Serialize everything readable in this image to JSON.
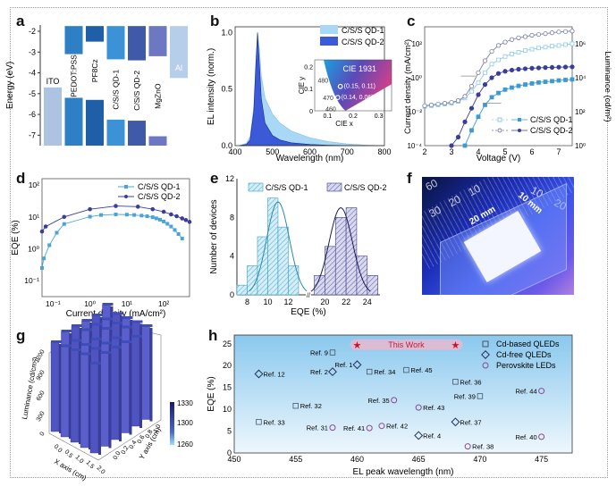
{
  "panel_labels": [
    "a",
    "b",
    "c",
    "d",
    "e",
    "f",
    "g",
    "h"
  ],
  "colors": {
    "qd1": "#5fb0e0",
    "qd2": "#3a3d9a",
    "qd1_fill": "#a8d8f5",
    "qd2_fill": "#3c5ad8",
    "axis": "#333333",
    "star": "#d0102a",
    "perovskite": "#8a4a8a"
  },
  "chart_data": [
    {
      "id": "a",
      "type": "bar",
      "title": "",
      "ylabel": "Energy (eV)",
      "ylim": [
        -7.5,
        -1.7
      ],
      "yticks": [
        -2,
        -3,
        -4,
        -5,
        -6,
        -7
      ],
      "categories": [
        "ITO",
        "PEDOT:PSS",
        "PF8Cz",
        "C/S/S QD-1",
        "C/S/S QD-2",
        "MgZnO",
        "Al"
      ],
      "display_labels": [
        "ITO",
        "PEDOT:PSS",
        "PF8Cz",
        "C/S/S QD-1",
        "C/S/S QD-2",
        "MgZnO",
        "Al"
      ],
      "bars": [
        {
          "name": "ITO",
          "top": -4.7,
          "bottom": -7.5,
          "color": "#9db8dc"
        },
        {
          "name": "PEDOT:PSS",
          "lumo": -1.75,
          "lumo_bottom": -3.1,
          "homo_top": -5.2,
          "homo_bottom": -7.5,
          "color": "#2f7fc4"
        },
        {
          "name": "PF8Cz",
          "lumo": -1.75,
          "lumo_bottom": -2.5,
          "homo_top": -5.3,
          "homo_bottom": -7.5,
          "color": "#1e5fa8"
        },
        {
          "name": "C/S/S QD-1",
          "lumo": -1.75,
          "lumo_bottom": -3.35,
          "homo_top": -6.25,
          "homo_bottom": -7.5,
          "color": "#3b92d6"
        },
        {
          "name": "C/S/S QD-2",
          "lumo": -1.75,
          "lumo_bottom": -3.4,
          "homo_top": -6.3,
          "homo_bottom": -7.5,
          "color": "#3f5aa8"
        },
        {
          "name": "MgZnO",
          "lumo": -1.75,
          "lumo_bottom": -3.2,
          "homo_top": -7.05,
          "homo_bottom": -7.5,
          "color": "#6d77c2"
        },
        {
          "name": "Al",
          "top": -1.75,
          "bottom": -4.25,
          "color": "#a9c6e6"
        }
      ]
    },
    {
      "id": "b",
      "type": "area",
      "title": "",
      "xlabel": "Wavelength (nm)",
      "ylabel": "EL intensity (norm.)",
      "xlim": [
        400,
        800
      ],
      "ylim": [
        0,
        1.05
      ],
      "xticks": [
        400,
        500,
        600,
        700,
        800
      ],
      "yticks": [
        0.0,
        0.5,
        1.0
      ],
      "ytick_labels": [
        "0.0",
        "0.5",
        "1.0"
      ],
      "legend": "top-right",
      "series": [
        {
          "name": "C/S/S QD-1",
          "peak": 460,
          "x": [
            410,
            430,
            440,
            450,
            455,
            460,
            465,
            470,
            480,
            500,
            520,
            550,
            600,
            650,
            700,
            750,
            800
          ],
          "values": [
            0,
            0.02,
            0.08,
            0.35,
            0.7,
            1.0,
            0.85,
            0.62,
            0.42,
            0.28,
            0.2,
            0.13,
            0.07,
            0.035,
            0.015,
            0.005,
            0
          ]
        },
        {
          "name": "C/S/S QD-2",
          "peak": 460,
          "x": [
            410,
            430,
            440,
            450,
            455,
            460,
            465,
            470,
            480,
            500,
            520,
            550,
            600,
            650,
            700,
            750,
            800
          ],
          "values": [
            0,
            0.01,
            0.05,
            0.3,
            0.68,
            1.0,
            0.72,
            0.42,
            0.2,
            0.09,
            0.05,
            0.025,
            0.01,
            0.004,
            0.001,
            0,
            0
          ]
        }
      ],
      "inset": {
        "title": "CIE 1931",
        "xlabel": "CIE x",
        "ylabel": "CIE y",
        "xticks": [
          0.1,
          0.2,
          0.3
        ],
        "yticks": [
          0,
          0.1,
          0.2
        ],
        "wavelength_marks": [
          "480",
          "470",
          "460"
        ],
        "points": [
          {
            "label": "(0.15, 0.11)",
            "x": 0.15,
            "y": 0.11
          },
          {
            "label": "(0.14, 0.06)",
            "x": 0.14,
            "y": 0.06
          }
        ]
      }
    },
    {
      "id": "c",
      "type": "line",
      "title": "",
      "xlabel": "Voltage (V)",
      "ylabel": "Current density (mA/cm²)",
      "ylabel2": "Luminance (cd/m²)",
      "xlim": [
        2,
        7.5
      ],
      "xticks": [
        2,
        3,
        4,
        5,
        6,
        7
      ],
      "ylim_log": [
        -4,
        3
      ],
      "yticks_labels": [
        "10⁻⁴",
        "10⁻²",
        "10⁰",
        "10²"
      ],
      "y2lim_log": [
        0,
        7
      ],
      "y2ticks_labels": [
        "10⁰",
        "10²",
        "10⁴",
        "10⁶"
      ],
      "legend": "bottom-right",
      "series": [
        {
          "name": "C/S/S QD-1",
          "kind": "current",
          "marker": "open-square",
          "x": [
            2.0,
            2.25,
            2.5,
            2.75,
            3.0,
            3.25,
            3.5,
            3.75,
            4.0,
            4.25,
            4.5,
            4.75,
            5.0,
            5.25,
            5.5,
            5.75,
            6.0,
            6.25,
            6.5,
            6.75,
            7.0,
            7.25,
            7.5
          ],
          "log10_values": [
            -1.7,
            -1.65,
            -1.6,
            -1.55,
            -1.5,
            -1.4,
            -1.2,
            -0.8,
            -0.3,
            0.3,
            0.8,
            1.05,
            1.25,
            1.4,
            1.5,
            1.6,
            1.68,
            1.75,
            1.8,
            1.86,
            1.9,
            1.95,
            2.0
          ]
        },
        {
          "name": "C/S/S QD-2",
          "kind": "current",
          "marker": "open-circle",
          "x": [
            2.0,
            2.25,
            2.5,
            2.75,
            3.0,
            3.25,
            3.5,
            3.75,
            4.0,
            4.25,
            4.5,
            4.75,
            5.0,
            5.25,
            5.5,
            5.75,
            6.0,
            6.25,
            6.5,
            6.75,
            7.0,
            7.25,
            7.5
          ],
          "log10_values": [
            -1.65,
            -1.6,
            -1.55,
            -1.5,
            -1.45,
            -1.35,
            -1.1,
            -0.5,
            0.3,
            1.0,
            1.55,
            1.9,
            2.1,
            2.25,
            2.35,
            2.42,
            2.5,
            2.55,
            2.6,
            2.65,
            2.7,
            2.72,
            2.75
          ]
        },
        {
          "name": "C/S/S QD-1",
          "kind": "luminance",
          "marker": "filled-square",
          "x": [
            3.5,
            3.75,
            4.0,
            4.25,
            4.5,
            4.75,
            5.0,
            5.25,
            5.5,
            5.75,
            6.0,
            6.25,
            6.5,
            6.75,
            7.0,
            7.25,
            7.5
          ],
          "log10_values": [
            0.0,
            0.9,
            1.7,
            2.4,
            2.85,
            3.1,
            3.3,
            3.42,
            3.52,
            3.6,
            3.66,
            3.72,
            3.76,
            3.8,
            3.84,
            3.87,
            3.9
          ]
        },
        {
          "name": "C/S/S QD-2",
          "kind": "luminance",
          "marker": "filled-circle",
          "x": [
            3.0,
            3.25,
            3.5,
            3.75,
            4.0,
            4.25,
            4.5,
            4.75,
            5.0,
            5.25,
            5.5,
            5.75,
            6.0,
            6.25,
            6.5,
            6.75,
            7.0,
            7.25,
            7.5
          ],
          "log10_values": [
            0.0,
            0.5,
            1.4,
            2.2,
            3.0,
            3.6,
            4.0,
            4.25,
            4.38,
            4.45,
            4.5,
            4.53,
            4.56,
            4.58,
            4.6,
            4.61,
            4.62,
            4.63,
            4.64
          ]
        }
      ]
    },
    {
      "id": "d",
      "type": "line",
      "title": "",
      "xlabel": "Current density (mA/cm²)",
      "ylabel": "EQE (%)",
      "xlim_log": [
        -1.3,
        2.7
      ],
      "xticks_labels": [
        "10⁻¹",
        "10⁰",
        "10¹",
        "10²"
      ],
      "ylim_log": [
        -1.5,
        2.2
      ],
      "yticks_labels": [
        "10⁻¹",
        "10⁰",
        "10¹",
        "10²"
      ],
      "legend": "top-right",
      "series": [
        {
          "name": "C/S/S QD-1",
          "log10_x": [
            -1.3,
            -1.25,
            -1.1,
            -0.9,
            -0.7,
            0.0,
            0.3,
            0.7,
            1.0,
            1.2,
            1.4,
            1.55,
            1.7,
            1.8,
            1.9,
            2.0,
            2.1,
            2.2,
            2.3,
            2.4,
            2.5
          ],
          "eqe": [
            0.25,
            0.5,
            1.3,
            3.2,
            6.0,
            10.2,
            11.5,
            12.0,
            11.8,
            11.5,
            11.0,
            10.5,
            9.8,
            9.0,
            8.2,
            7.2,
            6.1,
            5.0,
            3.9,
            2.9,
            2.1
          ]
        },
        {
          "name": "C/S/S QD-2",
          "log10_x": [
            -1.3,
            -1.2,
            -0.7,
            0.0,
            0.7,
            1.3,
            1.7,
            2.0,
            2.2,
            2.35,
            2.5,
            2.6,
            2.7
          ],
          "eqe": [
            3.5,
            5.0,
            10.0,
            17.5,
            22.0,
            21.0,
            17.5,
            14.5,
            12.0,
            10.5,
            9.0,
            8.0,
            7.0
          ]
        }
      ]
    },
    {
      "id": "e",
      "type": "bar",
      "title": "",
      "xlabel": "EQE (%)",
      "ylabel": "Number of devices",
      "ylim": [
        0,
        12
      ],
      "yticks": [
        0,
        4,
        8,
        12
      ],
      "xticks_left": [
        8,
        10,
        12
      ],
      "xticks_right": [
        20,
        22,
        24
      ],
      "axis_break": true,
      "legend": "top",
      "series": [
        {
          "name": "C/S/S QD-1",
          "bin_centers": [
            7.5,
            8.5,
            9.5,
            10.5,
            11.5,
            12.5
          ],
          "values": [
            1,
            3,
            6,
            10,
            7,
            3
          ],
          "fit_peak": 11.0,
          "fit_height": 9.6
        },
        {
          "name": "C/S/S QD-2",
          "bin_centers": [
            19.5,
            20.5,
            21.5,
            22.5,
            23.5,
            24.5
          ],
          "values": [
            2,
            5,
            8,
            9,
            4,
            2
          ],
          "fit_peak": 21.5,
          "fit_height": 9.0
        }
      ]
    },
    {
      "id": "f",
      "type": "photo",
      "annotations": [
        "20 mm",
        "10 mm"
      ],
      "ruler_numbers": [
        "60",
        "20",
        "10",
        "30",
        "10",
        "20"
      ]
    },
    {
      "id": "g",
      "type": "bar3d",
      "title": "",
      "xlabel": "X axis (cm)",
      "ylabel": "Y axis (cm)",
      "zlabel": "Luminance (cd/cm²)",
      "zticks": [
        0,
        300,
        600,
        900,
        1200
      ],
      "xticks": [
        0.0,
        0.5,
        1.0,
        1.5,
        2.0
      ],
      "yticks": [
        0.0,
        0.2,
        0.4,
        0.6,
        0.8,
        1.0
      ],
      "colorbar": {
        "min": 1260,
        "max": 1330,
        "ticks": [
          1260,
          1300,
          1330
        ]
      },
      "grid": "5x6",
      "value_range_approx": [
        1290,
        1330
      ]
    },
    {
      "id": "h",
      "type": "scatter",
      "title": "",
      "xlabel": "EL peak wavelength (nm)",
      "ylabel": "EQE (%)",
      "xlim": [
        450,
        477.5
      ],
      "ylim": [
        0,
        27
      ],
      "xticks": [
        450,
        455,
        460,
        465,
        470,
        475
      ],
      "yticks": [
        0,
        5,
        10,
        15,
        20,
        25
      ],
      "legend": "top-right",
      "highlight": {
        "label": "This Work",
        "points": [
          {
            "x": 460,
            "y": 24.8
          },
          {
            "x": 468,
            "y": 24.8
          }
        ]
      },
      "series": [
        {
          "name": "Cd-based QLEDs",
          "marker": "square",
          "points": [
            {
              "label": "Ref. 9",
              "x": 458,
              "y": 23.0,
              "label_side": "left"
            },
            {
              "label": "Ref. 34",
              "x": 461,
              "y": 18.6,
              "label_side": "right"
            },
            {
              "label": "Ref. 45",
              "x": 464,
              "y": 19.0,
              "label_side": "right"
            },
            {
              "label": "Ref. 36",
              "x": 468,
              "y": 16.3,
              "label_side": "right"
            },
            {
              "label": "Ref. 39",
              "x": 470,
              "y": 13.0,
              "label_side": "left"
            },
            {
              "label": "Ref. 32",
              "x": 455,
              "y": 10.8,
              "label_side": "right"
            },
            {
              "label": "Ref. 33",
              "x": 452,
              "y": 7.1,
              "label_side": "right"
            }
          ]
        },
        {
          "name": "Cd-free QLEDs",
          "marker": "diamond",
          "points": [
            {
              "label": "Ref. 12",
              "x": 452,
              "y": 18.1,
              "label_side": "right"
            },
            {
              "label": "Ref. 2",
              "x": 458,
              "y": 18.6,
              "label_side": "left"
            },
            {
              "label": "Ref. 1",
              "x": 460,
              "y": 20.2,
              "label_side": "left"
            },
            {
              "label": "Ref. 37",
              "x": 468,
              "y": 7.1,
              "label_side": "right"
            },
            {
              "label": "Ref. 4",
              "x": 465,
              "y": 4.0,
              "label_side": "right"
            }
          ]
        },
        {
          "name": "Perovskite LEDs",
          "marker": "circle",
          "points": [
            {
              "label": "Ref. 35",
              "x": 463,
              "y": 12.1,
              "label_side": "left"
            },
            {
              "label": "Ref. 43",
              "x": 465,
              "y": 10.4,
              "label_side": "right"
            },
            {
              "label": "Ref. 44",
              "x": 475,
              "y": 14.2,
              "label_side": "left"
            },
            {
              "label": "Ref. 31",
              "x": 458,
              "y": 5.8,
              "label_side": "left"
            },
            {
              "label": "Ref. 41",
              "x": 461,
              "y": 5.7,
              "label_side": "left"
            },
            {
              "label": "Ref. 42",
              "x": 462,
              "y": 6.2,
              "label_side": "right"
            },
            {
              "label": "Ref. 40",
              "x": 475,
              "y": 3.7,
              "label_side": "left"
            },
            {
              "label": "Ref. 38",
              "x": 469,
              "y": 1.5,
              "label_side": "right"
            }
          ]
        }
      ]
    }
  ]
}
